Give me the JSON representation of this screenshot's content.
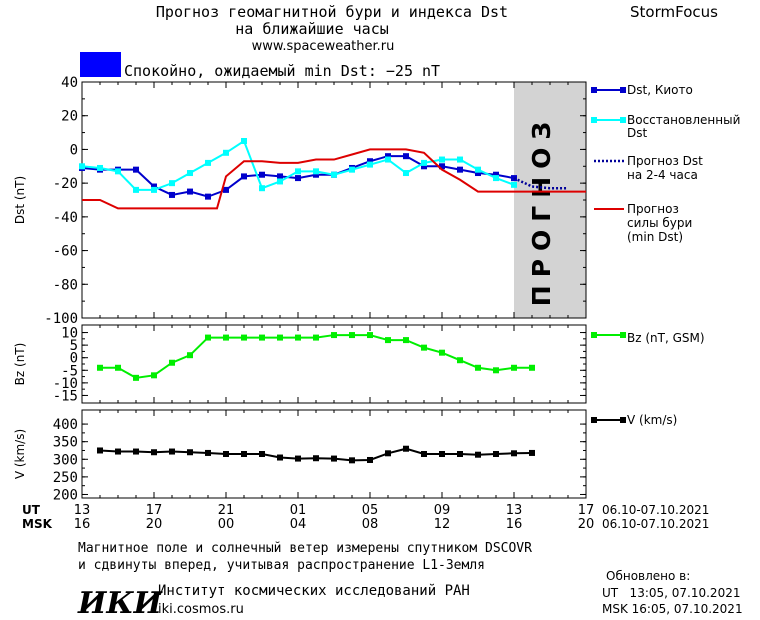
{
  "header": {
    "title_line1": "Прогноз геомагнитной бури и индекса Dst",
    "title_line2": "на ближайшие часы",
    "url": "www.spaceweather.ru",
    "brand": "StormFocus",
    "status_text": "Спокойно, ожидаемый min Dst: −25 nT",
    "status_color": "#0000ff"
  },
  "forecast_label": "ПРОГНОЗ",
  "time_axis": {
    "ut_label": "UT",
    "msk_label": "MSK",
    "ut_ticks": [
      "13",
      "17",
      "21",
      "01",
      "05",
      "09",
      "13",
      "17"
    ],
    "msk_ticks": [
      "16",
      "20",
      "00",
      "04",
      "08",
      "12",
      "16",
      "20"
    ],
    "date_range_ut": "06.10-07.10.2021",
    "date_range_msk": "06.10-07.10.2021"
  },
  "legend": {
    "dst_kyoto": "Dst, Киото",
    "restored_1": "Восстановленный",
    "restored_2": "Dst",
    "forecast_dst_1": "Прогноз Dst",
    "forecast_dst_2": "на 2-4 часа",
    "storm_1": "Прогноз",
    "storm_2": "силы бури",
    "storm_3": "(min Dst)",
    "bz": "Bz (nT, GSM)",
    "v": "V (km/s)"
  },
  "footer": {
    "note_line1": "Магнитное поле и солнечный ветер измерены спутником DSCOVR",
    "note_line2": "и сдвинуты вперед, учитывая распространение L1-Земля",
    "logo_text": "ИКИ",
    "institute": "Институт космических исследований РАН",
    "site": "iki.cosmos.ru",
    "updated_label": "Обновлено в:",
    "updated_ut": "UT   13:05, 07.10.2021",
    "updated_msk": "MSK 16:05, 07.10.2021"
  },
  "colors": {
    "dst_kyoto": "#0000cc",
    "restored": "#00ffff",
    "forecast_dst": "#000099",
    "storm": "#dd0000",
    "bz": "#00ee00",
    "v": "#000000",
    "forecast_band": "#d3d3d3"
  },
  "chart_data": [
    {
      "type": "line",
      "panel": "dst",
      "ylabel": "Dst (nT)",
      "ylim": [
        -100,
        40
      ],
      "yticks": [
        40,
        20,
        0,
        -20,
        -40,
        -60,
        -80,
        -100
      ],
      "xlim": [
        0,
        28
      ],
      "forecast_region": [
        24,
        28
      ],
      "series": [
        {
          "name": "Dst, Киото",
          "style": "line-marker",
          "color": "#0000cc",
          "x": [
            0,
            1,
            2,
            3,
            4,
            5,
            6,
            7,
            8,
            9,
            10,
            11,
            12,
            13,
            14,
            15,
            16,
            17,
            18,
            19,
            20,
            21,
            22,
            23,
            24
          ],
          "y": [
            -11,
            -12,
            -12,
            -12,
            -22,
            -27,
            -25,
            -28,
            -24,
            -16,
            -15,
            -16,
            -17,
            -15,
            -15,
            -11,
            -7,
            -4,
            -4,
            -10,
            -10,
            -12,
            -14,
            -15,
            -17
          ]
        },
        {
          "name": "Восстановленный Dst",
          "style": "line-marker",
          "color": "#00ffff",
          "x": [
            0,
            1,
            2,
            3,
            4,
            5,
            6,
            7,
            8,
            9,
            10,
            11,
            12,
            13,
            14,
            15,
            16,
            17,
            18,
            19,
            20,
            21,
            22,
            23,
            24
          ],
          "y": [
            -10,
            -11,
            -13,
            -24,
            -24,
            -20,
            -14,
            -8,
            -2,
            5,
            -23,
            -19,
            -13,
            -13,
            -15,
            -12,
            -9,
            -6,
            -14,
            -8,
            -6,
            -6,
            -12,
            -17,
            -21
          ]
        },
        {
          "name": "Прогноз Dst на 2-4 часа",
          "style": "dotted",
          "color": "#000099",
          "x": [
            24,
            25,
            26,
            27
          ],
          "y": [
            -17,
            -22,
            -23,
            -23
          ]
        },
        {
          "name": "Прогноз силы бури (min Dst)",
          "style": "line",
          "color": "#dd0000",
          "x": [
            0,
            1,
            2,
            3,
            4,
            5,
            6,
            7,
            7.5,
            8,
            9,
            10,
            11,
            12,
            13,
            14,
            15,
            16,
            17,
            18,
            19,
            20,
            21,
            22,
            23,
            24,
            25,
            26,
            27,
            28
          ],
          "y": [
            -30,
            -30,
            -35,
            -35,
            -35,
            -35,
            -35,
            -35,
            -35,
            -16,
            -7,
            -7,
            -8,
            -8,
            -6,
            -6,
            -3,
            0,
            0,
            0,
            -2,
            -12,
            -18,
            -25,
            -25,
            -25,
            -25,
            -25,
            -25,
            -25
          ]
        }
      ]
    },
    {
      "type": "line",
      "panel": "bz",
      "ylabel": "Bz (nT)",
      "ylim": [
        -18,
        13
      ],
      "yticks": [
        10,
        5,
        0,
        -5,
        -10,
        -15
      ],
      "xlim": [
        0,
        28
      ],
      "series": [
        {
          "name": "Bz (nT, GSM)",
          "style": "line-marker",
          "color": "#00ee00",
          "x": [
            1,
            2,
            3,
            4,
            5,
            6,
            7,
            8,
            9,
            10,
            11,
            12,
            13,
            14,
            15,
            16,
            17,
            18,
            19,
            20,
            21,
            22,
            23,
            24,
            25
          ],
          "y": [
            -4,
            -4,
            -8,
            -7,
            -2,
            1,
            8,
            8,
            8,
            8,
            8,
            8,
            8,
            9,
            9,
            9,
            7,
            7,
            4,
            2,
            -1,
            -4,
            -5,
            -4,
            -4
          ]
        }
      ]
    },
    {
      "type": "line",
      "panel": "v",
      "ylabel": "V (km/s)",
      "ylim": [
        190,
        440
      ],
      "yticks": [
        400,
        350,
        300,
        250,
        200
      ],
      "xlim": [
        0,
        28
      ],
      "series": [
        {
          "name": "V (km/s)",
          "style": "line-marker",
          "color": "#000000",
          "x": [
            1,
            2,
            3,
            4,
            5,
            6,
            7,
            8,
            9,
            10,
            11,
            12,
            13,
            14,
            15,
            16,
            17,
            18,
            19,
            20,
            21,
            22,
            23,
            24,
            25
          ],
          "y": [
            325,
            322,
            322,
            320,
            322,
            320,
            318,
            315,
            315,
            315,
            305,
            302,
            303,
            302,
            297,
            298,
            317,
            330,
            315,
            315,
            315,
            313,
            315,
            317,
            318
          ]
        }
      ]
    }
  ]
}
